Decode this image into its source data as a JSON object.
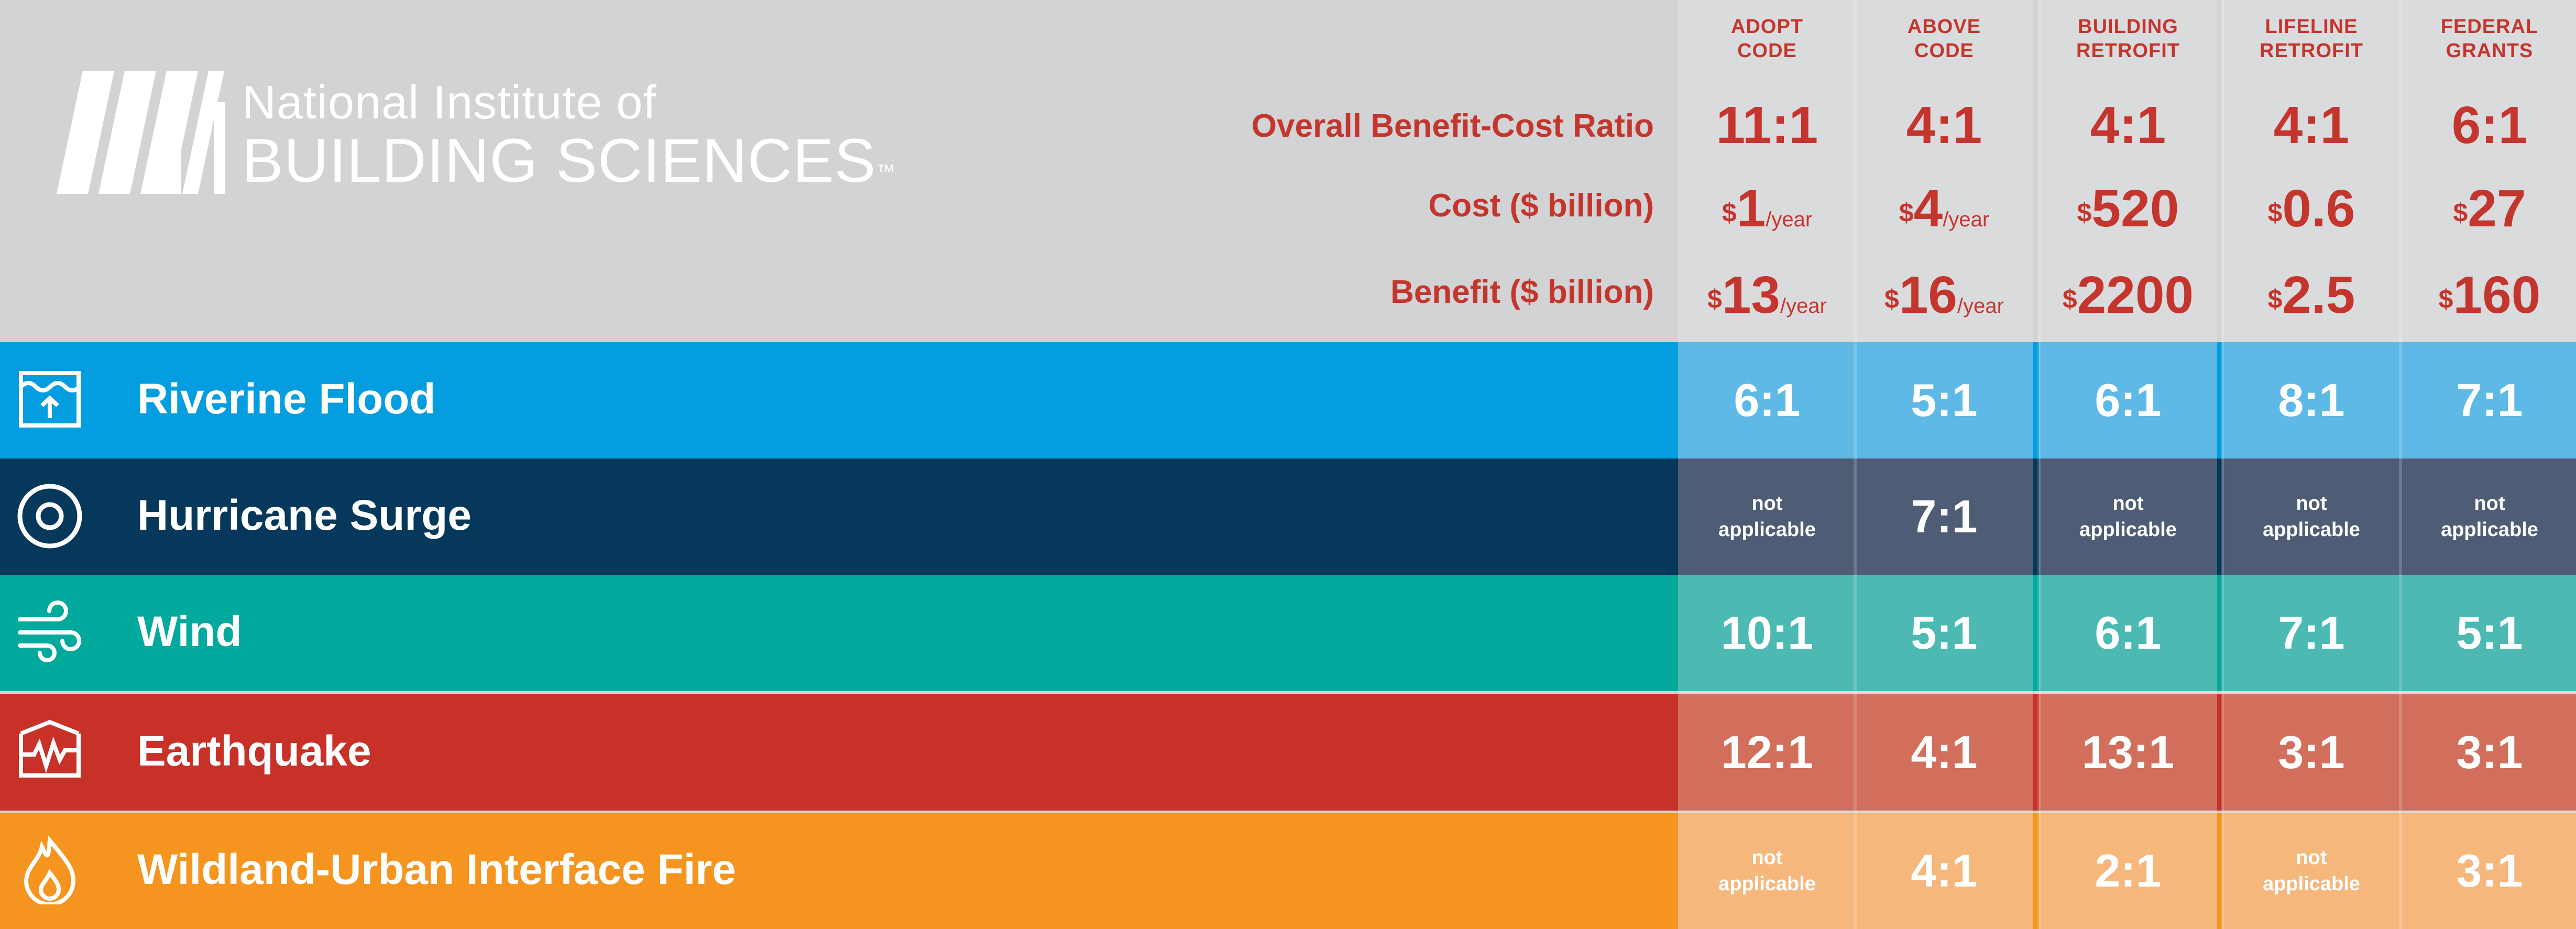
{
  "header": {
    "org_line1": "National Institute of",
    "org_line2": "BUILDING SCIENCES",
    "trademark": "™",
    "row_labels": {
      "overall": "Overall Benefit-Cost Ratio",
      "cost": "Cost ($ billion)",
      "benefit": "Benefit ($ billion)"
    }
  },
  "colors": {
    "header_bg": "#d2d3d5",
    "accent_red": "#c4362d",
    "riverine_flood": "#049ee0",
    "hurricane_surge": "#05385a",
    "wind": "#02a99d",
    "earthquake": "#c83127",
    "wui_fire": "#f5951f"
  },
  "chart_data": {
    "type": "table",
    "columns": [
      {
        "line1": "ADOPT",
        "line2": "CODE",
        "overall": "11:1",
        "cost": {
          "currency": "$",
          "value": "1",
          "unit": "/year"
        },
        "benefit": {
          "currency": "$",
          "value": "13",
          "unit": "/year"
        }
      },
      {
        "line1": "ABOVE",
        "line2": "CODE",
        "overall": "4:1",
        "cost": {
          "currency": "$",
          "value": "4",
          "unit": "/year"
        },
        "benefit": {
          "currency": "$",
          "value": "16",
          "unit": "/year"
        }
      },
      {
        "line1": "BUILDING",
        "line2": "RETROFIT",
        "overall": "4:1",
        "cost": {
          "currency": "$",
          "value": "520",
          "unit": ""
        },
        "benefit": {
          "currency": "$",
          "value": "2200",
          "unit": ""
        }
      },
      {
        "line1": "LIFELINE",
        "line2": "RETROFIT",
        "overall": "4:1",
        "cost": {
          "currency": "$",
          "value": "0.6",
          "unit": ""
        },
        "benefit": {
          "currency": "$",
          "value": "2.5",
          "unit": ""
        }
      },
      {
        "line1": "FEDERAL",
        "line2": "GRANTS",
        "overall": "6:1",
        "cost": {
          "currency": "$",
          "value": "27",
          "unit": ""
        },
        "benefit": {
          "currency": "$",
          "value": "160",
          "unit": ""
        }
      }
    ],
    "rows": [
      {
        "hazard": "Riverine Flood",
        "icon": "flood-icon",
        "values": [
          "6:1",
          "5:1",
          "6:1",
          "8:1",
          "7:1"
        ]
      },
      {
        "hazard": "Hurricane Surge",
        "icon": "hurricane-icon",
        "values": [
          "not applicable",
          "7:1",
          "not applicable",
          "not applicable",
          "not applicable"
        ]
      },
      {
        "hazard": "Wind",
        "icon": "wind-icon",
        "values": [
          "10:1",
          "5:1",
          "6:1",
          "7:1",
          "5:1"
        ]
      },
      {
        "hazard": "Earthquake",
        "icon": "earthquake-icon",
        "values": [
          "12:1",
          "4:1",
          "13:1",
          "3:1",
          "3:1"
        ]
      },
      {
        "hazard": "Wildland-Urban Interface Fire",
        "icon": "fire-icon",
        "values": [
          "not applicable",
          "4:1",
          "2:1",
          "not applicable",
          "3:1"
        ]
      }
    ]
  }
}
